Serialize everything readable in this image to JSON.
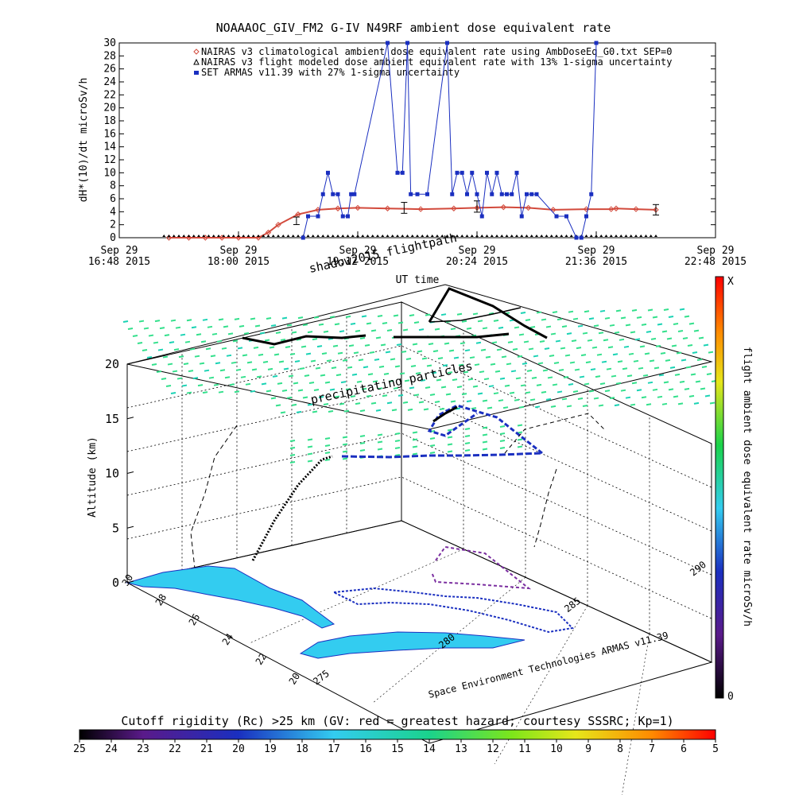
{
  "title": "NOAAAOC_GIV_FM2 G-IV   N49RF  ambient dose equivalent rate",
  "top_chart": {
    "ylabel": "dH*(10)/dt microSv/h",
    "xlabel": "UT time",
    "legend": [
      {
        "label": "NAIRAS v3 climatological ambient dose equivalent rate using AmbDoseEq_G0.txt SEP=0",
        "color": "#d24a3c",
        "marker": "diamond"
      },
      {
        "label": "NAIRAS v3 flight modeled dose ambient equivalent rate with 13% 1-sigma uncertainty",
        "color": "#000000",
        "marker": "triangle"
      },
      {
        "label": "SET ARMAS v11.39 with 27% 1-sigma uncertainty",
        "color": "#1a2fc0",
        "marker": "square"
      }
    ],
    "x_ticks": [
      {
        "date": "Sep 29",
        "time": "16:48 2015"
      },
      {
        "date": "Sep 29",
        "time": "18:00 2015"
      },
      {
        "date": "Sep 29",
        "time": "19:12 2015"
      },
      {
        "date": "Sep 29",
        "time": "20:24 2015"
      },
      {
        "date": "Sep 29",
        "time": "21:36 2015"
      },
      {
        "date": "Sep 29",
        "time": "22:48 2015"
      }
    ]
  },
  "chart_data": [
    {
      "type": "line",
      "title": "NOAAAOC_GIV_FM2 G-IV   N49RF  ambient dose equivalent rate",
      "xlabel": "UT time",
      "ylabel": "dH*(10)/dt microSv/h",
      "x_unit": "UT time, Sep 29 2015 (HH:MM)",
      "xlim": [
        "16:48",
        "22:48"
      ],
      "ylim": [
        0,
        30
      ],
      "y_ticks": [
        0,
        2,
        4,
        6,
        8,
        10,
        12,
        14,
        16,
        18,
        20,
        22,
        24,
        26,
        28,
        30
      ],
      "grid": false,
      "legend_position": "top",
      "series": [
        {
          "name": "NAIRAS v3 climatological ambient dose equivalent rate using AmbDoseEq_G0.txt SEP=0",
          "color": "#d24a3c",
          "x": [
            "17:18",
            "17:30",
            "17:40",
            "17:50",
            "18:00",
            "18:12",
            "18:18",
            "18:24",
            "18:36",
            "18:48",
            "19:00",
            "19:12",
            "19:30",
            "19:50",
            "20:10",
            "20:24",
            "20:40",
            "20:55",
            "21:10",
            "21:30",
            "21:45",
            "21:48",
            "22:00",
            "22:12"
          ],
          "y": [
            0,
            0,
            0,
            0,
            0,
            0,
            0.8,
            2.0,
            3.6,
            4.3,
            4.5,
            4.6,
            4.5,
            4.4,
            4.5,
            4.6,
            4.7,
            4.6,
            4.3,
            4.4,
            4.4,
            4.5,
            4.4,
            4.3
          ]
        },
        {
          "name": "NAIRAS v3 flight modeled dose ambient equivalent rate with 13% 1-sigma uncertainty",
          "color": "#000000",
          "x": [
            "18:35",
            "19:40",
            "20:24",
            "22:12"
          ],
          "y": [
            2.6,
            4.6,
            4.8,
            4.3
          ]
        },
        {
          "name": "SET ARMAS v11.39 with 27% 1-sigma uncertainty",
          "color": "#1a2fc0",
          "x": [
            "18:39",
            "18:42",
            "18:48",
            "18:51",
            "18:54",
            "18:57",
            "19:00",
            "19:03",
            "19:06",
            "19:08",
            "19:10",
            "19:30",
            "19:36",
            "19:39",
            "19:42",
            "19:44",
            "19:48",
            "19:54",
            "20:06",
            "20:09",
            "20:12",
            "20:15",
            "20:18",
            "20:21",
            "20:24",
            "20:27",
            "20:30",
            "20:33",
            "20:36",
            "20:39",
            "20:42",
            "20:45",
            "20:48",
            "20:51",
            "20:54",
            "20:57",
            "21:00",
            "21:12",
            "21:18",
            "21:24",
            "21:27",
            "21:30",
            "21:33",
            "21:36"
          ],
          "y": [
            0,
            3.3,
            3.3,
            6.7,
            10,
            6.7,
            6.7,
            3.3,
            3.3,
            6.7,
            6.7,
            30,
            10,
            10,
            30,
            6.7,
            6.7,
            6.7,
            30,
            6.7,
            10,
            10,
            6.7,
            10,
            6.7,
            3.3,
            10,
            6.7,
            10,
            6.7,
            6.7,
            6.7,
            10,
            3.3,
            6.7,
            6.7,
            6.7,
            3.3,
            3.3,
            0,
            0,
            3.3,
            6.7,
            30
          ]
        }
      ]
    },
    {
      "type": "scatter",
      "title": "",
      "zlabel": "Altitude (km)",
      "z_ticks": [
        0,
        5,
        10,
        15,
        20
      ],
      "lat_ticks": [
        30,
        28,
        26,
        24,
        22,
        20
      ],
      "lon_ticks": [
        275,
        280,
        285,
        290
      ],
      "annotations": [
        "shadow2015 flightpath",
        "precipitating particles"
      ],
      "credit": "Space Environment Technologies ARMAS v11.39",
      "colorbar": {
        "label": "flight ambient dose equivalent rate microSv/h",
        "top_label": "X",
        "bottom_label": "0",
        "colormap": "rainbow"
      }
    }
  ],
  "texts": {
    "flightpath_label": "shadow2015 flightpath",
    "particles_label": "precipitating particles",
    "altitude_label": "Altitude (km)",
    "credit": "Space Environment Technologies ARMAS v11.39",
    "cbar_label": "flight ambient dose equivalent rate microSv/h",
    "cbar_top": "X",
    "cbar_bottom": "0",
    "cutoff_title": "Cutoff rigidity (Rc) >25 km (GV: red = greatest hazard; courtesy SSSRC; Kp=1)",
    "cutoff_ticks": [
      "25",
      "24",
      "23",
      "22",
      "21",
      "20",
      "19",
      "18",
      "17",
      "16",
      "15",
      "14",
      "13",
      "12",
      "11",
      "10",
      "9",
      "8",
      "7",
      "6",
      "5"
    ]
  },
  "colors": {
    "nairas_clim": "#d24a3c",
    "armas": "#1a2fc0",
    "particles": "#33e08c",
    "land": "#33ccf0",
    "flight_black": "#000000"
  }
}
